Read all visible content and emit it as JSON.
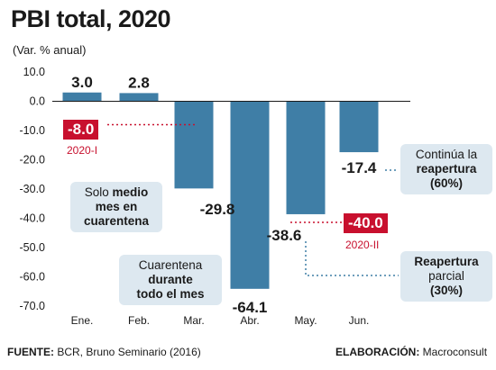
{
  "title": "PBI total, 2020",
  "subtitle": "(Var. % anual)",
  "chart_data": {
    "type": "bar",
    "categories": [
      "Ene.",
      "Feb.",
      "Mar.",
      "Abr.",
      "May.",
      "Jun."
    ],
    "values": [
      3.0,
      2.8,
      -29.8,
      -64.1,
      -38.6,
      -17.4
    ],
    "value_labels": [
      "3.0",
      "2.8",
      "-29.8",
      "-64.1",
      "-38.6",
      "-17.4"
    ],
    "ylim": [
      -70,
      10
    ],
    "yticks": [
      10,
      0,
      -10,
      -20,
      -30,
      -40,
      -50,
      -60,
      -70
    ],
    "ytick_labels": [
      "10.0",
      "0.0",
      "-10.0",
      "-20.0",
      "-30.0",
      "-40.0",
      "-50.0",
      "-60.0",
      "-70.0"
    ],
    "bar_color": "#3f7ea6",
    "grid": false,
    "quarter_marks": [
      {
        "label": "2020-I",
        "value_label": "-8.0",
        "value": -8.0
      },
      {
        "label": "2020-II",
        "value_label": "-40.0",
        "value": -40.0
      }
    ]
  },
  "annotations": {
    "mar": {
      "l1a": "Solo ",
      "l1b": "medio",
      "l2": "mes en",
      "l3": "cuarentena"
    },
    "abr": {
      "l1": "Cuarentena",
      "l2": "durante",
      "l3": "todo el mes"
    },
    "jun": {
      "l1": "Continúa la",
      "l2": "reapertura",
      "l3": "(60%)"
    },
    "q2": {
      "l1": "Reapertura",
      "l2": "parcial",
      "l3": "(30%)"
    }
  },
  "footer": {
    "source_label": "FUENTE:",
    "source": " BCR, Bruno Seminario (2016)",
    "credit_label": "ELABORACIÓN:",
    "credit": " Macroconsult"
  },
  "colors": {
    "accent": "#c8102e",
    "bar": "#3f7ea6",
    "note_bg": "#dde8f0"
  }
}
